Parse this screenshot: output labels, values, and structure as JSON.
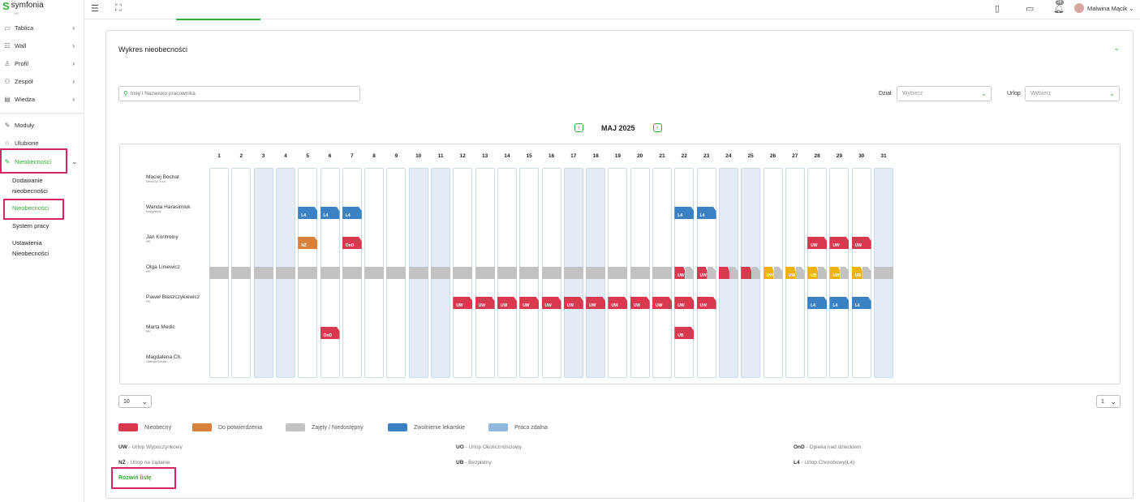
{
  "brand": {
    "name": "symfonia",
    "sub": "HR",
    "color": "#2eb135"
  },
  "sidebar": {
    "items": [
      {
        "label": "Tablica",
        "icon": "monitor-icon"
      },
      {
        "label": "Wall",
        "icon": "wall-icon"
      },
      {
        "label": "Profil",
        "icon": "user-icon"
      },
      {
        "label": "Zespół",
        "icon": "team-icon"
      },
      {
        "label": "Wiedza",
        "icon": "book-icon"
      },
      {
        "label": "Moduły",
        "icon": "wrench-icon"
      },
      {
        "label": "Ulubione",
        "icon": "star-icon"
      },
      {
        "label": "Nieobecności",
        "icon": "absence-icon"
      }
    ],
    "subitems": [
      "Dodawanie nieobecności",
      "Nieobecności",
      "System pracy",
      "Ustawienia Nieobecności"
    ]
  },
  "topbar": {
    "user_name": "Malwina Mącik",
    "notifications": "24"
  },
  "card": {
    "title": "Wykres nieobecności",
    "search_placeholder": "Imię i Nazwisko pracownika",
    "dept_label": "Dział",
    "dept_value": "Wybierz",
    "leave_label": "Urlop",
    "leave_value": "Wybierz",
    "month": "MAJ 2025"
  },
  "calendar": {
    "days": 31,
    "weekends": [
      3,
      4,
      10,
      11,
      17,
      18,
      24,
      25,
      31
    ],
    "employees": [
      {
        "name": "Maciej Bochat",
        "role": "Demo Sp. z o.o."
      },
      {
        "name": "Wanda Harasimiuk",
        "role": "Księgowość"
      },
      {
        "name": "Jan Kontrolny",
        "role": "HR"
      },
      {
        "name": "Olga Liniewicz",
        "role": "HR"
      },
      {
        "name": "Paweł Błaszczykiewicz",
        "role": "HR"
      },
      {
        "name": "Marta Medic",
        "role": "HR"
      },
      {
        "name": "Magdalena Ch.",
        "role": "Obsługa Klienta"
      }
    ],
    "absences": [
      {
        "row": 1,
        "day": 5,
        "code": "L4",
        "type": "blue"
      },
      {
        "row": 1,
        "day": 6,
        "code": "L4",
        "type": "blue"
      },
      {
        "row": 1,
        "day": 7,
        "code": "L4",
        "type": "blue"
      },
      {
        "row": 1,
        "day": 22,
        "code": "L4",
        "type": "blue"
      },
      {
        "row": 1,
        "day": 23,
        "code": "L4",
        "type": "blue"
      },
      {
        "row": 2,
        "day": 5,
        "code": "NŻ",
        "type": "orange"
      },
      {
        "row": 2,
        "day": 7,
        "code": "OnD",
        "type": "red"
      },
      {
        "row": 2,
        "day": 28,
        "code": "UW",
        "type": "red"
      },
      {
        "row": 2,
        "day": 29,
        "code": "UW",
        "type": "red"
      },
      {
        "row": 2,
        "day": 30,
        "code": "UW",
        "type": "red"
      },
      {
        "row": 4,
        "day": 12,
        "code": "UW",
        "type": "red"
      },
      {
        "row": 4,
        "day": 13,
        "code": "UW",
        "type": "red"
      },
      {
        "row": 4,
        "day": 14,
        "code": "UW",
        "type": "red"
      },
      {
        "row": 4,
        "day": 15,
        "code": "UW",
        "type": "red"
      },
      {
        "row": 4,
        "day": 16,
        "code": "UW",
        "type": "red"
      },
      {
        "row": 4,
        "day": 17,
        "code": "UW",
        "type": "red"
      },
      {
        "row": 4,
        "day": 18,
        "code": "UW",
        "type": "red"
      },
      {
        "row": 4,
        "day": 19,
        "code": "UW",
        "type": "red"
      },
      {
        "row": 4,
        "day": 20,
        "code": "UW",
        "type": "red"
      },
      {
        "row": 4,
        "day": 21,
        "code": "UW",
        "type": "red"
      },
      {
        "row": 4,
        "day": 22,
        "code": "UW",
        "type": "red"
      },
      {
        "row": 4,
        "day": 23,
        "code": "UW",
        "type": "red"
      },
      {
        "row": 4,
        "day": 28,
        "code": "L4",
        "type": "blue"
      },
      {
        "row": 4,
        "day": 29,
        "code": "L4",
        "type": "blue"
      },
      {
        "row": 4,
        "day": 30,
        "code": "L4",
        "type": "blue"
      },
      {
        "row": 5,
        "day": 6,
        "code": "OnD",
        "type": "red"
      },
      {
        "row": 5,
        "day": 22,
        "code": "UB",
        "type": "red"
      }
    ],
    "split_row": 3,
    "split_cells": [
      {
        "day": 22,
        "code": "UW",
        "type": "red"
      },
      {
        "day": 23,
        "code": "UW",
        "type": "red"
      },
      {
        "day": 24,
        "code": "",
        "type": "red"
      },
      {
        "day": 25,
        "code": "",
        "type": "red"
      },
      {
        "day": 26,
        "code": "UW",
        "type": "yellow"
      },
      {
        "day": 27,
        "code": "UW",
        "type": "yellow"
      },
      {
        "day": 28,
        "code": "UB",
        "type": "yellow"
      },
      {
        "day": 29,
        "code": "UW",
        "type": "yellow"
      },
      {
        "day": 30,
        "code": "UB",
        "type": "yellow"
      }
    ]
  },
  "pagination": {
    "page_size": "10",
    "page": "1"
  },
  "legend": [
    {
      "label": "Nieobecny",
      "color": "#d8394e"
    },
    {
      "label": "Do potwierdzenia",
      "color": "#d9803a"
    },
    {
      "label": "Zajęty / Niedostępny",
      "color": "#c2c2c2"
    },
    {
      "label": "Zwolnienie lekarskie",
      "color": "#3a82c4"
    },
    {
      "label": "Praca zdalna",
      "color": "#8fb8dc"
    }
  ],
  "abbreviations": [
    {
      "code": "UW",
      "desc": " - Urlop Wypoczynkowy"
    },
    {
      "code": "UO",
      "desc": " - Urlop Okolicznościowy"
    },
    {
      "code": "OnD",
      "desc": " - Opieka nad dzieckiem"
    },
    {
      "code": "NŻ",
      "desc": " - Urlop na żądanie"
    },
    {
      "code": "UB",
      "desc": " - Bezpłatny"
    },
    {
      "code": "L4",
      "desc": " - Urlop Chorobowy(L4)"
    }
  ],
  "expand_label": "Rozwiń listę"
}
